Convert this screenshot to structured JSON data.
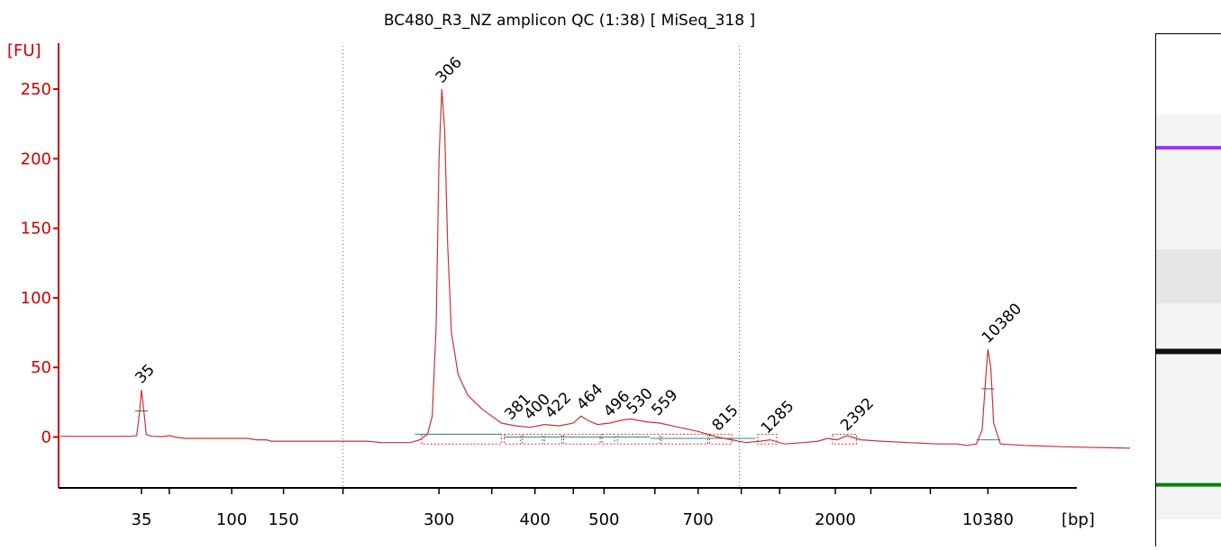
{
  "chart_data": {
    "type": "line",
    "title": "BC480_R3_NZ amplicon QC (1:38)  [ MiSeq_318 ]",
    "ylabel": "[FU]",
    "xlabel": "[bp]",
    "ylim": [
      -35,
      278
    ],
    "yticks": [
      0,
      50,
      100,
      150,
      200,
      250
    ],
    "xaxis": {
      "tick_labels": [
        {
          "label": "35",
          "pos": 0.0
        },
        {
          "label": "",
          "pos": 0.29
        },
        {
          "label": "100",
          "pos": 0.94
        },
        {
          "label": "150",
          "pos": 1.48
        },
        {
          "label": "",
          "pos": 2.1
        },
        {
          "label": "300",
          "pos": 3.1
        },
        {
          "label": "",
          "pos": 3.65
        },
        {
          "label": "400",
          "pos": 4.1
        },
        {
          "label": "",
          "pos": 4.5
        },
        {
          "label": "500",
          "pos": 4.82
        },
        {
          "label": "",
          "pos": 5.35
        },
        {
          "label": "700",
          "pos": 5.8
        },
        {
          "label": "",
          "pos": 6.25
        },
        {
          "label": "",
          "pos": 6.65
        },
        {
          "label": "2000",
          "pos": 7.23
        },
        {
          "label": "",
          "pos": 7.6
        },
        {
          "label": "",
          "pos": 8.22
        },
        {
          "label": "10380",
          "pos": 8.82
        }
      ],
      "dotted_lines": [
        2.1,
        6.23
      ]
    },
    "peaks": [
      {
        "label": "35",
        "pos": 0.0,
        "height": 34,
        "color": "#1a8a1a"
      },
      {
        "label": "306",
        "pos": 3.13,
        "height": 250,
        "color": "#000000"
      },
      {
        "label": "381",
        "pos": 3.85,
        "height": 8,
        "color": "#000000"
      },
      {
        "label": "400",
        "pos": 4.05,
        "height": 8,
        "color": "#000000"
      },
      {
        "label": "422",
        "pos": 4.27,
        "height": 9,
        "color": "#000000"
      },
      {
        "label": "464",
        "pos": 4.6,
        "height": 15,
        "color": "#000000"
      },
      {
        "label": "496",
        "pos": 4.88,
        "height": 10,
        "color": "#000000"
      },
      {
        "label": "530",
        "pos": 5.12,
        "height": 12,
        "color": "#000000"
      },
      {
        "label": "559",
        "pos": 5.38,
        "height": 11,
        "color": "#000000"
      },
      {
        "label": "815",
        "pos": 6.01,
        "height": 0,
        "color": "#000000"
      },
      {
        "label": "1285",
        "pos": 6.52,
        "height": -2,
        "color": "#000000"
      },
      {
        "label": "2392",
        "pos": 7.35,
        "height": 0,
        "color": "#000000"
      },
      {
        "label": "10380",
        "pos": 8.82,
        "height": 63,
        "color": "#8a2be2"
      }
    ],
    "trace": [
      [
        -0.85,
        0.5
      ],
      [
        -0.1,
        0.5
      ],
      [
        -0.05,
        1
      ],
      [
        -0.02,
        18
      ],
      [
        0.0,
        34
      ],
      [
        0.02,
        22
      ],
      [
        0.05,
        2
      ],
      [
        0.1,
        0.5
      ],
      [
        0.22,
        0.3
      ],
      [
        0.3,
        1
      ],
      [
        0.35,
        0
      ],
      [
        0.45,
        -1
      ],
      [
        1.1,
        -1
      ],
      [
        1.2,
        -2
      ],
      [
        1.3,
        -2
      ],
      [
        1.35,
        -3
      ],
      [
        2.35,
        -3
      ],
      [
        2.5,
        -4
      ],
      [
        2.8,
        -4
      ],
      [
        2.9,
        -2
      ],
      [
        2.98,
        2
      ],
      [
        3.03,
        15
      ],
      [
        3.07,
        80
      ],
      [
        3.1,
        200
      ],
      [
        3.13,
        250
      ],
      [
        3.16,
        220
      ],
      [
        3.19,
        140
      ],
      [
        3.23,
        75
      ],
      [
        3.3,
        45
      ],
      [
        3.4,
        30
      ],
      [
        3.55,
        20
      ],
      [
        3.65,
        15
      ],
      [
        3.75,
        10
      ],
      [
        3.9,
        8
      ],
      [
        4.05,
        7
      ],
      [
        4.2,
        9
      ],
      [
        4.35,
        8
      ],
      [
        4.5,
        10
      ],
      [
        4.58,
        15
      ],
      [
        4.65,
        12
      ],
      [
        4.75,
        9
      ],
      [
        4.88,
        10
      ],
      [
        5.0,
        12
      ],
      [
        5.1,
        13
      ],
      [
        5.25,
        11
      ],
      [
        5.4,
        10
      ],
      [
        5.6,
        7
      ],
      [
        5.8,
        4
      ],
      [
        6.0,
        0
      ],
      [
        6.15,
        -2
      ],
      [
        6.3,
        -4
      ],
      [
        6.45,
        -3
      ],
      [
        6.55,
        -2
      ],
      [
        6.7,
        -5
      ],
      [
        6.9,
        -4
      ],
      [
        7.05,
        -3
      ],
      [
        7.15,
        -1
      ],
      [
        7.25,
        -2
      ],
      [
        7.35,
        1
      ],
      [
        7.5,
        -2
      ],
      [
        7.7,
        -3
      ],
      [
        8.0,
        -4
      ],
      [
        8.3,
        -5
      ],
      [
        8.5,
        -5
      ],
      [
        8.6,
        -6
      ],
      [
        8.7,
        -5
      ],
      [
        8.76,
        5
      ],
      [
        8.8,
        45
      ],
      [
        8.82,
        63
      ],
      [
        8.85,
        50
      ],
      [
        8.88,
        10
      ],
      [
        8.95,
        -5
      ],
      [
        9.2,
        -6
      ],
      [
        9.6,
        -7
      ],
      [
        10.3,
        -8
      ]
    ],
    "baselines": [
      {
        "x0": 2.85,
        "x1": 3.75,
        "y": 2
      },
      {
        "x0": 3.78,
        "x1": 5.3,
        "y": 0
      },
      {
        "x0": 5.3,
        "x1": 6.4,
        "y": -1
      },
      {
        "x0": 8.7,
        "x1": 8.95,
        "y": -2
      }
    ],
    "regions": [
      {
        "x0": 2.92,
        "x1": 3.75
      },
      {
        "x0": 3.78,
        "x1": 3.95
      },
      {
        "x0": 3.97,
        "x1": 4.18
      },
      {
        "x0": 4.2,
        "x1": 4.38
      },
      {
        "x0": 4.4,
        "x1": 4.78
      },
      {
        "x0": 4.8,
        "x1": 4.93
      },
      {
        "x0": 4.96,
        "x1": 5.4
      },
      {
        "x0": 5.42,
        "x1": 5.9
      },
      {
        "x0": 5.92,
        "x1": 6.15
      },
      {
        "x0": 6.42,
        "x1": 6.62
      },
      {
        "x0": 7.2,
        "x1": 7.45
      }
    ],
    "gel_bands": [
      {
        "y": 0.223,
        "color": "#9b30ff",
        "weight": 4
      },
      {
        "y": 0.62,
        "color": "#111111",
        "weight": 6
      },
      {
        "y": 0.88,
        "color": "#008000",
        "weight": 4
      }
    ],
    "colors": {
      "axis": "#cc0000",
      "trace": "#cc3333",
      "baseline": "#2e8b8b",
      "marker": "#1a8a1a",
      "ladder": "#8a2be2"
    }
  }
}
